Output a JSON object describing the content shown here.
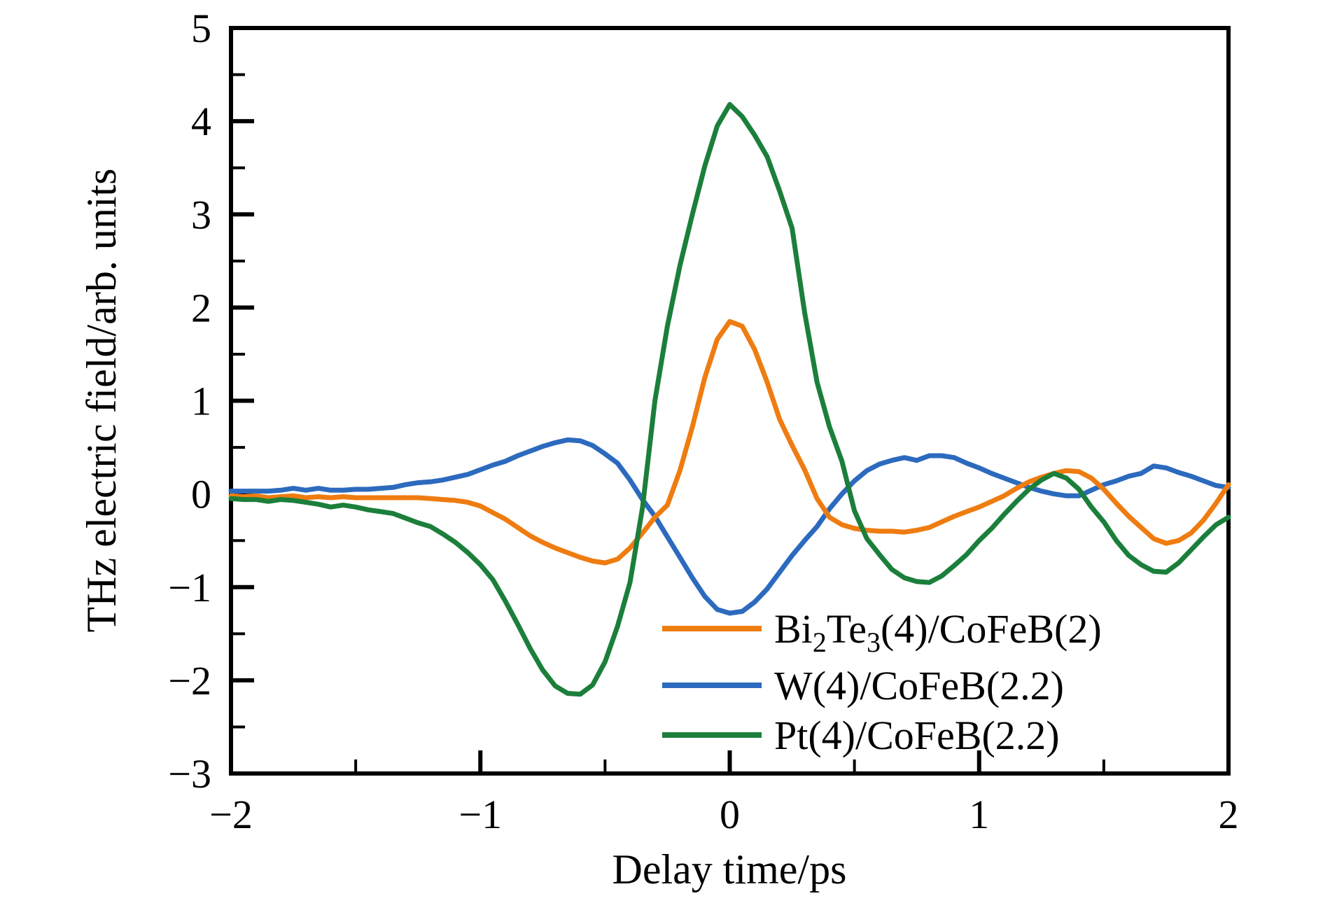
{
  "figure": {
    "background": "#ffffff"
  },
  "chart_data": {
    "type": "line",
    "title": "",
    "xlabel": "Delay time/ps",
    "ylabel": "THz electric field/arb. units",
    "xlim": [
      -2,
      2
    ],
    "ylim": [
      -3,
      5
    ],
    "grid": false,
    "legend_position": "lower right inside",
    "x_major_ticks": [
      -2,
      -1,
      0,
      1,
      2
    ],
    "x_major_tick_labels": [
      "−2",
      "−1",
      "0",
      "1",
      "2"
    ],
    "x_minor_ticks": [
      -1.5,
      -0.5,
      0.5,
      1.5
    ],
    "y_major_ticks": [
      5,
      4,
      3,
      2,
      1,
      0,
      -1,
      -2,
      -3
    ],
    "y_major_tick_labels": [
      "5",
      "4",
      "3",
      "2",
      "1",
      "0",
      "−1",
      "−2",
      "−3"
    ],
    "y_minor_ticks": [
      4.5,
      3.5,
      2.5,
      1.5,
      0.5,
      -0.5,
      -1.5,
      -2.5
    ],
    "x_start": -2,
    "x_step": 0.05,
    "axis_color": "#000000",
    "series": [
      {
        "name": "Bi2Te3(4)/CoFeB(2)",
        "label_parts": [
          [
            "n",
            "Bi"
          ],
          [
            "s",
            "2"
          ],
          [
            "n",
            "Te"
          ],
          [
            "s",
            "3"
          ],
          [
            "n",
            "(4)/CoFeB(2)"
          ]
        ],
        "color": "#ef7c10",
        "values": [
          -0.02,
          -0.03,
          -0.02,
          -0.04,
          -0.03,
          -0.02,
          -0.04,
          -0.03,
          -0.04,
          -0.03,
          -0.04,
          -0.04,
          -0.04,
          -0.04,
          -0.04,
          -0.04,
          -0.05,
          -0.06,
          -0.07,
          -0.09,
          -0.13,
          -0.2,
          -0.27,
          -0.36,
          -0.45,
          -0.52,
          -0.58,
          -0.63,
          -0.68,
          -0.72,
          -0.74,
          -0.7,
          -0.58,
          -0.42,
          -0.25,
          -0.12,
          0.25,
          0.72,
          1.25,
          1.66,
          1.85,
          1.8,
          1.55,
          1.2,
          0.8,
          0.52,
          0.26,
          -0.05,
          -0.25,
          -0.33,
          -0.37,
          -0.39,
          -0.4,
          -0.4,
          -0.41,
          -0.39,
          -0.36,
          -0.3,
          -0.24,
          -0.19,
          -0.14,
          -0.08,
          -0.02,
          0.06,
          0.13,
          0.18,
          0.22,
          0.25,
          0.24,
          0.17,
          0.05,
          -0.1,
          -0.24,
          -0.36,
          -0.48,
          -0.53,
          -0.5,
          -0.42,
          -0.28,
          -0.1,
          0.1
        ]
      },
      {
        "name": "W(4)/CoFeB(2.2)",
        "label_parts": [
          [
            "n",
            "W(4)/CoFeB(2.2)"
          ]
        ],
        "color": "#2c6abe",
        "values": [
          0.03,
          0.03,
          0.03,
          0.03,
          0.04,
          0.06,
          0.04,
          0.06,
          0.04,
          0.04,
          0.05,
          0.05,
          0.06,
          0.07,
          0.1,
          0.12,
          0.13,
          0.15,
          0.18,
          0.21,
          0.26,
          0.31,
          0.35,
          0.41,
          0.46,
          0.51,
          0.55,
          0.58,
          0.57,
          0.52,
          0.43,
          0.33,
          0.15,
          -0.06,
          -0.24,
          -0.46,
          -0.68,
          -0.9,
          -1.1,
          -1.24,
          -1.28,
          -1.26,
          -1.16,
          -1.02,
          -0.84,
          -0.66,
          -0.5,
          -0.35,
          -0.16,
          0.0,
          0.14,
          0.25,
          0.32,
          0.36,
          0.39,
          0.36,
          0.41,
          0.41,
          0.39,
          0.33,
          0.28,
          0.22,
          0.17,
          0.12,
          0.07,
          0.03,
          0.0,
          -0.02,
          -0.02,
          0.04,
          0.1,
          0.14,
          0.19,
          0.22,
          0.3,
          0.28,
          0.23,
          0.19,
          0.14,
          0.09,
          0.07
        ]
      },
      {
        "name": "Pt(4)/CoFeB(2.2)",
        "label_parts": [
          [
            "n",
            "Pt(4)/CoFeB(2.2)"
          ]
        ],
        "color": "#1b7f3b",
        "values": [
          -0.05,
          -0.06,
          -0.06,
          -0.08,
          -0.06,
          -0.07,
          -0.09,
          -0.11,
          -0.14,
          -0.12,
          -0.14,
          -0.17,
          -0.19,
          -0.21,
          -0.26,
          -0.31,
          -0.35,
          -0.43,
          -0.52,
          -0.63,
          -0.76,
          -0.92,
          -1.15,
          -1.4,
          -1.66,
          -1.89,
          -2.06,
          -2.14,
          -2.15,
          -2.05,
          -1.8,
          -1.42,
          -0.95,
          -0.15,
          1.0,
          1.8,
          2.45,
          3.0,
          3.52,
          3.95,
          4.18,
          4.05,
          3.85,
          3.62,
          3.25,
          2.85,
          1.95,
          1.2,
          0.72,
          0.35,
          -0.18,
          -0.48,
          -0.65,
          -0.81,
          -0.9,
          -0.94,
          -0.95,
          -0.88,
          -0.77,
          -0.65,
          -0.5,
          -0.37,
          -0.22,
          -0.08,
          0.05,
          0.15,
          0.22,
          0.17,
          0.05,
          -0.14,
          -0.3,
          -0.5,
          -0.66,
          -0.76,
          -0.83,
          -0.84,
          -0.74,
          -0.6,
          -0.46,
          -0.33,
          -0.25
        ]
      }
    ]
  }
}
